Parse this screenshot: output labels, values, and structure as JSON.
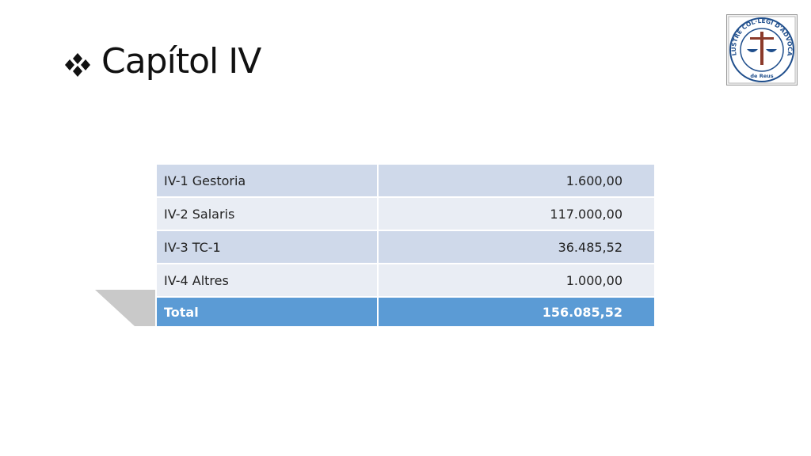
{
  "title": "Capítol IV",
  "logo": {
    "ring_text": "IL·LUSTRE COL·LEGI D'ADVOCATS",
    "city": "de Reus"
  },
  "table": {
    "rows": [
      [
        "IV-1 Gestoria",
        "1.600,00"
      ],
      [
        "IV-2 Salaris",
        "117.000,00"
      ],
      [
        "IV-3 TC-1",
        "36.485,52"
      ],
      [
        "IV-4 Altres",
        "1.000,00"
      ]
    ],
    "total": [
      "Total",
      "156.085,52"
    ]
  }
}
